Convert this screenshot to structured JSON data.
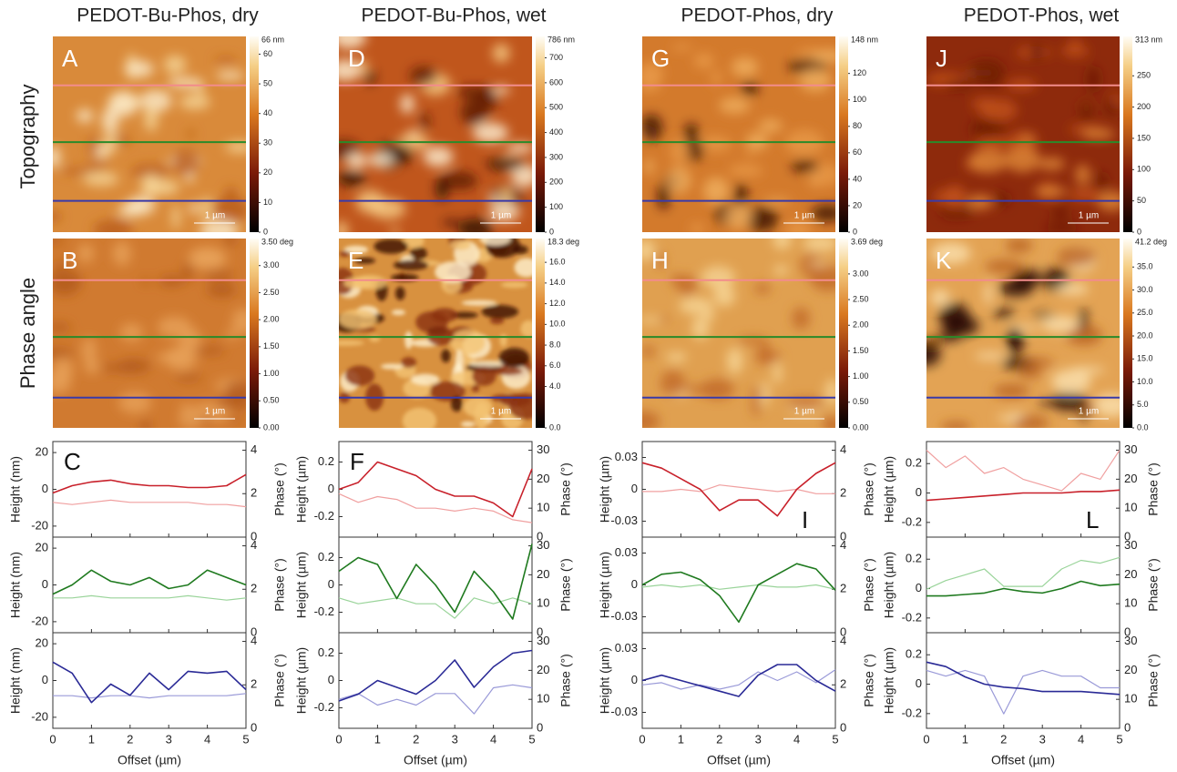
{
  "row_labels": [
    "Topography",
    "Phase angle"
  ],
  "xlabel": "Offset (µm)",
  "xlim": [
    0,
    5
  ],
  "xticks": [
    0,
    1,
    2,
    3,
    4,
    5
  ],
  "profile_x": [
    0,
    0.5,
    1,
    1.5,
    2,
    2.5,
    3,
    3.5,
    4,
    4.5,
    5
  ],
  "columns": [
    {
      "title": "PEDOT-Bu-Phos, dry",
      "topo": {
        "letter": "A",
        "cbar_lim": [
          0,
          66
        ],
        "cbar_max": "66 nm",
        "cbar_ticks": [
          0,
          10,
          20,
          30,
          40,
          50,
          60
        ],
        "scale": "1 µm"
      },
      "phase": {
        "letter": "B",
        "cbar_lim": [
          0,
          3.5
        ],
        "cbar_max": "3.50 deg",
        "cbar_ticks": [
          {
            "value": 0,
            "label": "0.00"
          },
          {
            "value": 0.5,
            "label": "0.50"
          },
          {
            "value": 1,
            "label": "1.00"
          },
          {
            "value": 1.5,
            "label": "1.50"
          },
          {
            "value": 2,
            "label": "2.00"
          },
          {
            "value": 2.5,
            "label": "2.50"
          },
          {
            "value": 3,
            "label": "3.00"
          }
        ],
        "scale": "1 µm"
      },
      "profile": {
        "letter": "C",
        "ylabel": "Height (nm)",
        "y2label": "Phase (°)",
        "ylim": [
          -26,
          26
        ],
        "yticks": [
          -20,
          0,
          20
        ],
        "y2lim": [
          0,
          4.4
        ],
        "y2ticks": [
          0,
          2,
          4
        ],
        "rows": [
          {
            "height": [
              -2,
              2,
              4,
              5,
              3,
              2,
              2,
              1,
              1,
              2,
              8
            ],
            "phase": [
              1.6,
              1.5,
              1.6,
              1.7,
              1.6,
              1.6,
              1.6,
              1.6,
              1.5,
              1.5,
              1.4
            ]
          },
          {
            "height": [
              -5,
              0,
              8,
              2,
              0,
              4,
              -2,
              0,
              8,
              4,
              0
            ],
            "phase": [
              1.6,
              1.6,
              1.7,
              1.6,
              1.6,
              1.6,
              1.6,
              1.7,
              1.6,
              1.5,
              1.6
            ]
          },
          {
            "height": [
              10,
              4,
              -12,
              -2,
              -8,
              4,
              -5,
              5,
              4,
              5,
              -5
            ],
            "phase": [
              1.5,
              1.5,
              1.4,
              1.5,
              1.5,
              1.4,
              1.5,
              1.5,
              1.5,
              1.5,
              1.6
            ]
          }
        ]
      }
    },
    {
      "title": "PEDOT-Bu-Phos, wet",
      "topo": {
        "letter": "D",
        "cbar_lim": [
          0,
          786
        ],
        "cbar_max": "786 nm",
        "cbar_ticks": [
          0,
          100,
          200,
          300,
          400,
          500,
          600,
          700
        ],
        "scale": "1 µm"
      },
      "phase": {
        "letter": "E",
        "cbar_lim": [
          0,
          18.3
        ],
        "cbar_max": "18.3 deg",
        "cbar_ticks": [
          {
            "value": 0,
            "label": "0.0"
          },
          {
            "value": 4,
            "label": "4.0"
          },
          {
            "value": 6,
            "label": "6.0"
          },
          {
            "value": 8,
            "label": "8.0"
          },
          {
            "value": 10,
            "label": "10.0"
          },
          {
            "value": 12,
            "label": "12.0"
          },
          {
            "value": 14,
            "label": "14.0"
          },
          {
            "value": 16,
            "label": "16.0"
          }
        ],
        "scale": "1 µm"
      },
      "profile": {
        "letter": "F",
        "ylabel": "Height (µm)",
        "y2label": "Phase (°)",
        "ylim": [
          -0.35,
          0.35
        ],
        "yticks": [
          -0.2,
          0,
          0.2
        ],
        "y2lim": [
          0,
          33
        ],
        "y2ticks": [
          0,
          10,
          20,
          30
        ],
        "rows": [
          {
            "height": [
              0.0,
              0.05,
              0.2,
              0.15,
              0.1,
              0.0,
              -0.05,
              -0.05,
              -0.1,
              -0.2,
              0.15
            ],
            "phase": [
              15,
              12,
              14,
              13,
              10,
              10,
              9,
              10,
              9,
              6,
              5
            ]
          },
          {
            "height": [
              0.1,
              0.2,
              0.15,
              -0.1,
              0.15,
              0.0,
              -0.2,
              0.1,
              -0.05,
              -0.25,
              0.3
            ],
            "phase": [
              12,
              10,
              11,
              12,
              10,
              10,
              5,
              12,
              10,
              12,
              10
            ]
          },
          {
            "height": [
              -0.15,
              -0.1,
              0.0,
              -0.05,
              -0.1,
              0.0,
              0.15,
              -0.05,
              0.1,
              0.2,
              0.22
            ],
            "phase": [
              10,
              12,
              8,
              10,
              8,
              12,
              12,
              5,
              14,
              15,
              14
            ]
          }
        ]
      }
    },
    {
      "title": "PEDOT-Phos, dry",
      "topo": {
        "letter": "G",
        "cbar_lim": [
          0,
          148
        ],
        "cbar_max": "148 nm",
        "cbar_ticks": [
          0,
          20,
          40,
          60,
          80,
          100,
          120
        ],
        "scale": "1 µm"
      },
      "phase": {
        "letter": "H",
        "cbar_lim": [
          0,
          3.69
        ],
        "cbar_max": "3.69 deg",
        "cbar_ticks": [
          {
            "value": 0,
            "label": "0.00"
          },
          {
            "value": 0.5,
            "label": "0.50"
          },
          {
            "value": 1,
            "label": "1.00"
          },
          {
            "value": 1.5,
            "label": "1.50"
          },
          {
            "value": 2,
            "label": "2.00"
          },
          {
            "value": 2.5,
            "label": "2.50"
          },
          {
            "value": 3,
            "label": "3.00"
          }
        ],
        "scale": "1 µm"
      },
      "profile": {
        "letter": "I",
        "ylabel": "Height (µm)",
        "y2label": "Phase (°)",
        "ylim": [
          -0.045,
          0.045
        ],
        "yticks": [
          -0.03,
          0,
          0.03
        ],
        "y2lim": [
          0,
          4.4
        ],
        "y2ticks": [
          0,
          2,
          4
        ],
        "rows": [
          {
            "height": [
              0.025,
              0.02,
              0.01,
              0,
              -0.02,
              -0.01,
              -0.01,
              -0.025,
              0.0,
              0.015,
              0.025
            ],
            "phase": [
              2.1,
              2.1,
              2.2,
              2.1,
              2.4,
              2.3,
              2.2,
              2.1,
              2.2,
              2.0,
              2.0
            ]
          },
          {
            "height": [
              0,
              0.01,
              0.012,
              0.005,
              -0.01,
              -0.035,
              0.0,
              0.01,
              0.02,
              0.015,
              -0.005
            ],
            "phase": [
              2.1,
              2.2,
              2.1,
              2.2,
              2.0,
              2.1,
              2.2,
              2.1,
              2.1,
              2.2,
              2.0
            ]
          },
          {
            "height": [
              0,
              0.005,
              0,
              -0.005,
              -0.01,
              -0.015,
              0.005,
              0.015,
              0.015,
              0,
              -0.01
            ],
            "phase": [
              2.0,
              2.1,
              1.8,
              2.0,
              1.8,
              2.0,
              2.6,
              2.2,
              2.6,
              2.1,
              2.7
            ]
          }
        ]
      }
    },
    {
      "title": "PEDOT-Phos, wet",
      "topo": {
        "letter": "J",
        "cbar_lim": [
          0,
          313
        ],
        "cbar_max": "313 nm",
        "cbar_ticks": [
          0,
          50,
          100,
          150,
          200,
          250
        ],
        "scale": "1 µm"
      },
      "phase": {
        "letter": "K",
        "cbar_lim": [
          0,
          41.2
        ],
        "cbar_max": "41.2 deg",
        "cbar_ticks": [
          {
            "value": 0,
            "label": "0.0"
          },
          {
            "value": 5,
            "label": "5.0"
          },
          {
            "value": 10,
            "label": "10.0"
          },
          {
            "value": 15,
            "label": "15.0"
          },
          {
            "value": 20,
            "label": "20.0"
          },
          {
            "value": 25,
            "label": "25.0"
          },
          {
            "value": 30,
            "label": "30.0"
          },
          {
            "value": 35,
            "label": "35.0"
          }
        ],
        "scale": "1 µm"
      },
      "profile": {
        "letter": "L",
        "ylabel": "Height (µm)",
        "y2label": "Phase (°)",
        "ylim": [
          -0.3,
          0.35
        ],
        "yticks": [
          -0.2,
          0,
          0.2
        ],
        "y2lim": [
          0,
          33
        ],
        "y2ticks": [
          0,
          10,
          20,
          30
        ],
        "rows": [
          {
            "height": [
              -0.05,
              -0.04,
              -0.03,
              -0.02,
              -0.01,
              0,
              0,
              0,
              0.01,
              0.01,
              0.02
            ],
            "phase": [
              30,
              24,
              28,
              22,
              24,
              20,
              18,
              16,
              22,
              20,
              30
            ]
          },
          {
            "height": [
              -0.05,
              -0.05,
              -0.04,
              -0.03,
              0,
              -0.02,
              -0.03,
              0.0,
              0.05,
              0.02,
              0.03
            ],
            "phase": [
              15,
              18,
              20,
              22,
              16,
              16,
              16,
              22,
              25,
              24,
              26
            ]
          },
          {
            "height": [
              0.15,
              0.12,
              0.05,
              0.0,
              -0.02,
              -0.03,
              -0.05,
              -0.05,
              -0.05,
              -0.06,
              -0.07
            ],
            "phase": [
              20,
              18,
              20,
              18,
              5,
              18,
              20,
              18,
              18,
              14,
              14
            ]
          }
        ]
      }
    }
  ]
}
